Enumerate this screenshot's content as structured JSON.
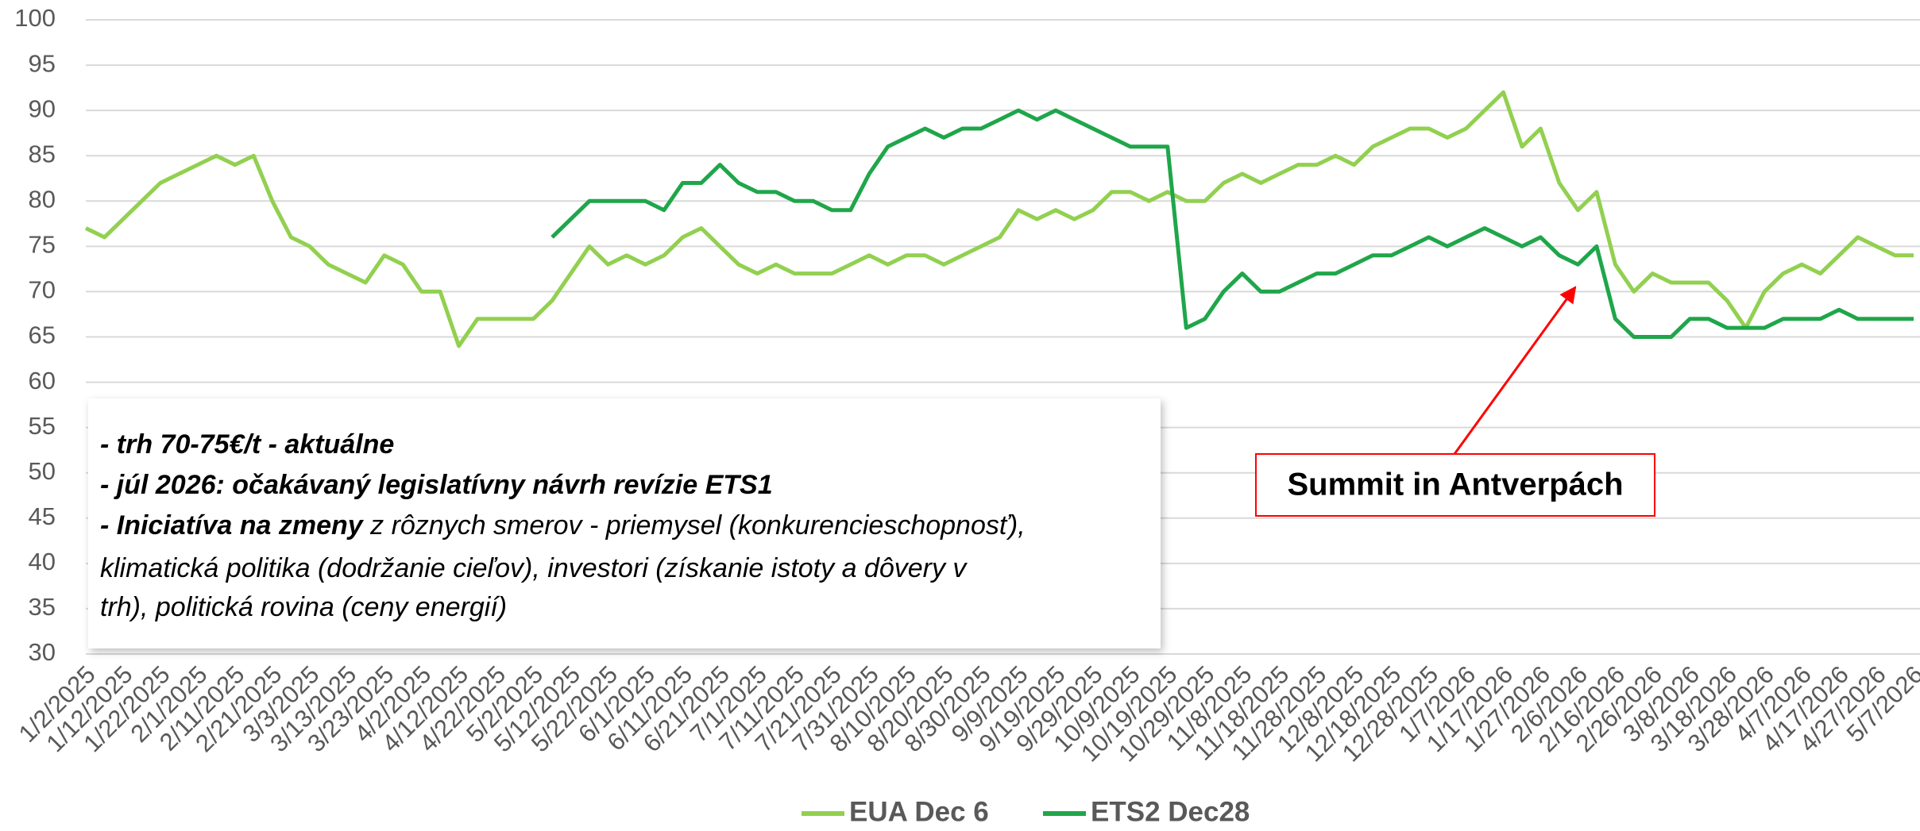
{
  "chart_data": {
    "type": "line",
    "categories": [
      "1/2/2025",
      null,
      "1/12/2025",
      null,
      "1/22/2025",
      null,
      "2/1/2025",
      null,
      "2/11/2025",
      null,
      "2/21/2025",
      null,
      "3/3/2025",
      null,
      "3/13/2025",
      null,
      "3/23/2025",
      null,
      "4/2/2025",
      null,
      "4/12/2025",
      null,
      "4/22/2025",
      null,
      "5/2/2025",
      null,
      "5/12/2025",
      null,
      "5/22/2025",
      null,
      "6/1/2025",
      null,
      "6/11/2025",
      null,
      "6/21/2025",
      null,
      "7/1/2025",
      null,
      "7/11/2025",
      null,
      "7/21/2025",
      null,
      "7/31/2025",
      null,
      "8/10/2025",
      null,
      "8/20/2025",
      null,
      "8/30/2025",
      null,
      "9/9/2025",
      null,
      "9/19/2025",
      null,
      "9/29/2025",
      null,
      "10/9/2025",
      null,
      "10/19/2025",
      null,
      "10/29/2025",
      null,
      "11/8/2025",
      null,
      "11/18/2025",
      null,
      "11/28/2025",
      null,
      "12/8/2025",
      null,
      "12/18/2025",
      null,
      "12/28/2025",
      null,
      "1/7/2026",
      null,
      "1/17/2026",
      null,
      "1/27/2026",
      null,
      "2/6/2026",
      null,
      "2/16/2026",
      null,
      "2/26/2026",
      null,
      "3/8/2026",
      null,
      "3/18/2026",
      null,
      "3/28/2026",
      null,
      "4/7/2026",
      null,
      "4/17/2026",
      null,
      "4/27/2026",
      null,
      "5/7/2026"
    ],
    "series": [
      {
        "name": "EUA Dec 6",
        "color": "#92d050",
        "values": [
          77,
          76,
          78,
          80,
          82,
          83,
          84,
          85,
          84,
          85,
          80,
          76,
          75,
          73,
          72,
          71,
          74,
          73,
          70,
          70,
          64,
          67,
          67,
          67,
          67,
          69,
          72,
          75,
          73,
          74,
          73,
          74,
          76,
          77,
          75,
          73,
          72,
          73,
          72,
          72,
          72,
          73,
          74,
          73,
          74,
          74,
          73,
          74,
          75,
          76,
          79,
          78,
          79,
          78,
          79,
          81,
          81,
          80,
          81,
          80,
          80,
          82,
          83,
          82,
          83,
          84,
          84,
          85,
          84,
          86,
          87,
          88,
          88,
          87,
          88,
          90,
          92,
          86,
          88,
          82,
          79,
          81,
          73,
          70,
          72,
          71,
          71,
          71,
          69,
          66,
          70,
          72,
          73,
          72,
          74,
          76,
          75,
          74,
          74
        ]
      },
      {
        "name": "ETS2 Dec28",
        "color": "#1fa64a",
        "values": [
          null,
          null,
          null,
          null,
          null,
          null,
          null,
          null,
          null,
          null,
          null,
          null,
          null,
          null,
          null,
          null,
          null,
          null,
          null,
          null,
          null,
          null,
          null,
          null,
          null,
          76,
          78,
          80,
          80,
          80,
          80,
          79,
          82,
          82,
          84,
          82,
          81,
          81,
          80,
          80,
          79,
          79,
          83,
          86,
          87,
          88,
          87,
          88,
          88,
          89,
          90,
          89,
          90,
          89,
          88,
          87,
          86,
          86,
          86,
          66,
          67,
          70,
          72,
          70,
          70,
          71,
          72,
          72,
          73,
          74,
          74,
          75,
          76,
          75,
          76,
          77,
          76,
          75,
          76,
          74,
          73,
          75,
          67,
          65,
          65,
          65,
          67,
          67,
          66,
          66,
          66,
          67,
          67,
          67,
          68,
          67,
          67,
          67,
          67
        ]
      }
    ],
    "ylim": [
      30,
      100
    ],
    "yticks": [
      30,
      35,
      40,
      45,
      50,
      55,
      60,
      65,
      70,
      75,
      80,
      85,
      90,
      95,
      100
    ],
    "grid": true,
    "legend": "bottom",
    "annotations": {
      "notes": [
        "- trh 70-75€/t - aktuálne",
        "- júl 2026: očakávaný legislatívny návrh revízie ETS1",
        {
          "bold": "- Iniciatíva na zmeny",
          "text": " z rôznych smerov - priemysel (konkurencieschopnosť),"
        },
        "klimatická politika (dodržanie cieľov), investori (získanie istoty a dôvery v",
        "trh), politická rovina (ceny energií)"
      ],
      "callout": "Summit in Antverpách"
    }
  }
}
